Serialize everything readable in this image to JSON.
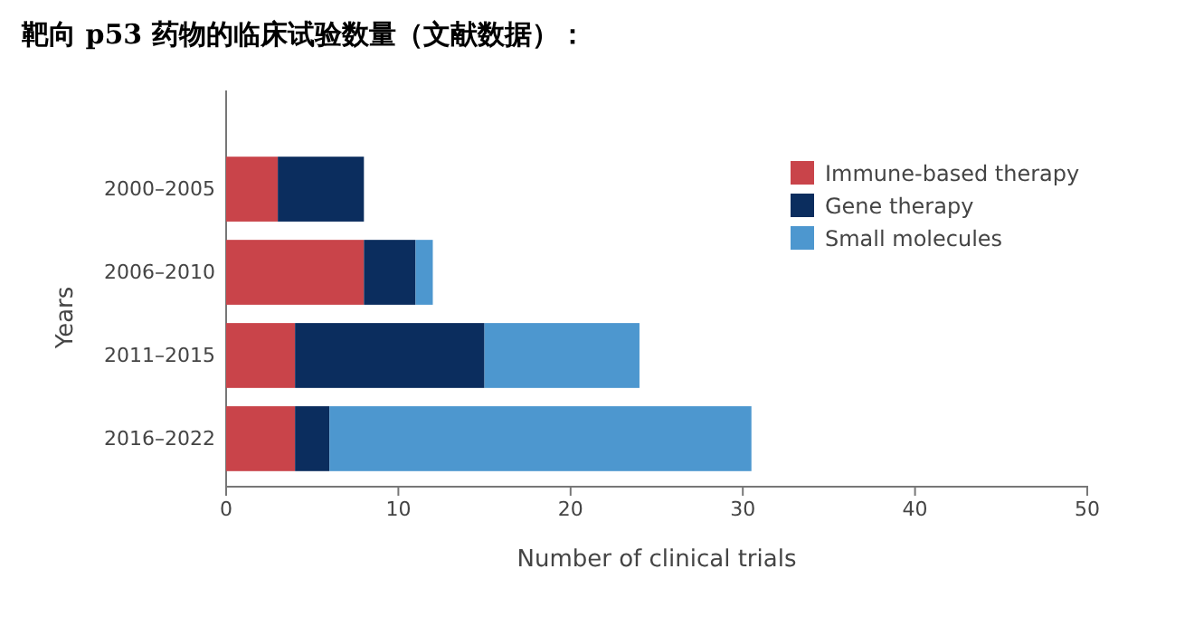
{
  "chart_data": {
    "type": "bar",
    "orientation": "horizontal",
    "stacked": true,
    "title": "靶向 p53 药物的临床试验数量（文献数据）：",
    "xlabel": "Number of clinical trials",
    "ylabel": "Years",
    "categories": [
      "2000–2005",
      "2006–2010",
      "2011–2015",
      "2016–2022"
    ],
    "series": [
      {
        "name": "Immune-based therapy",
        "color": "#c9444a",
        "values": [
          3,
          8,
          4,
          4
        ]
      },
      {
        "name": "Gene therapy",
        "color": "#0b2d5e",
        "values": [
          5,
          3,
          11,
          2
        ]
      },
      {
        "name": "Small molecules",
        "color": "#4d97cf",
        "values": [
          0,
          1,
          9,
          24.5
        ]
      }
    ],
    "xlim": [
      0,
      50
    ],
    "xticks": [
      0,
      10,
      20,
      30,
      40,
      50
    ],
    "legend": "top right",
    "grid": false
  }
}
